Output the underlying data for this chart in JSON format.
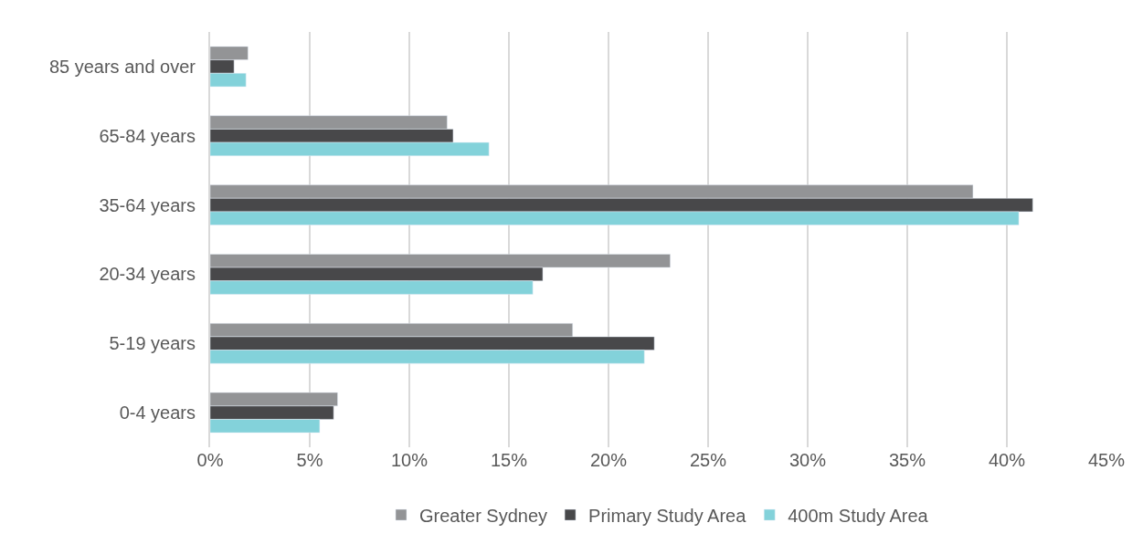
{
  "chart_data": {
    "type": "bar",
    "orientation": "horizontal",
    "categories": [
      "85 years and over",
      "65-84 years",
      "35-64 years",
      "20-34 years",
      "5-19 years",
      "0-4 years"
    ],
    "series": [
      {
        "name": "Greater Sydney",
        "color": "#939496",
        "values": [
          1.9,
          11.9,
          38.3,
          23.1,
          18.2,
          6.4
        ]
      },
      {
        "name": "Primary Study Area",
        "color": "#48484a",
        "values": [
          1.2,
          12.2,
          41.3,
          16.7,
          22.3,
          6.2
        ]
      },
      {
        "name": "400m Study Area",
        "color": "#83d2da",
        "values": [
          1.8,
          14.0,
          40.6,
          16.2,
          21.8,
          5.5
        ]
      }
    ],
    "xlim": [
      0,
      45
    ],
    "xticks": [
      {
        "value": 0,
        "label": "0%"
      },
      {
        "value": 5,
        "label": "5%"
      },
      {
        "value": 10,
        "label": "10%"
      },
      {
        "value": 15,
        "label": "15%"
      },
      {
        "value": 20,
        "label": "20%"
      },
      {
        "value": 25,
        "label": "25%"
      },
      {
        "value": 30,
        "label": "30%"
      },
      {
        "value": 35,
        "label": "35%"
      },
      {
        "value": 40,
        "label": "40%"
      },
      {
        "value": 45,
        "label": "45%"
      }
    ],
    "grid": "x",
    "legend": "bottom"
  }
}
